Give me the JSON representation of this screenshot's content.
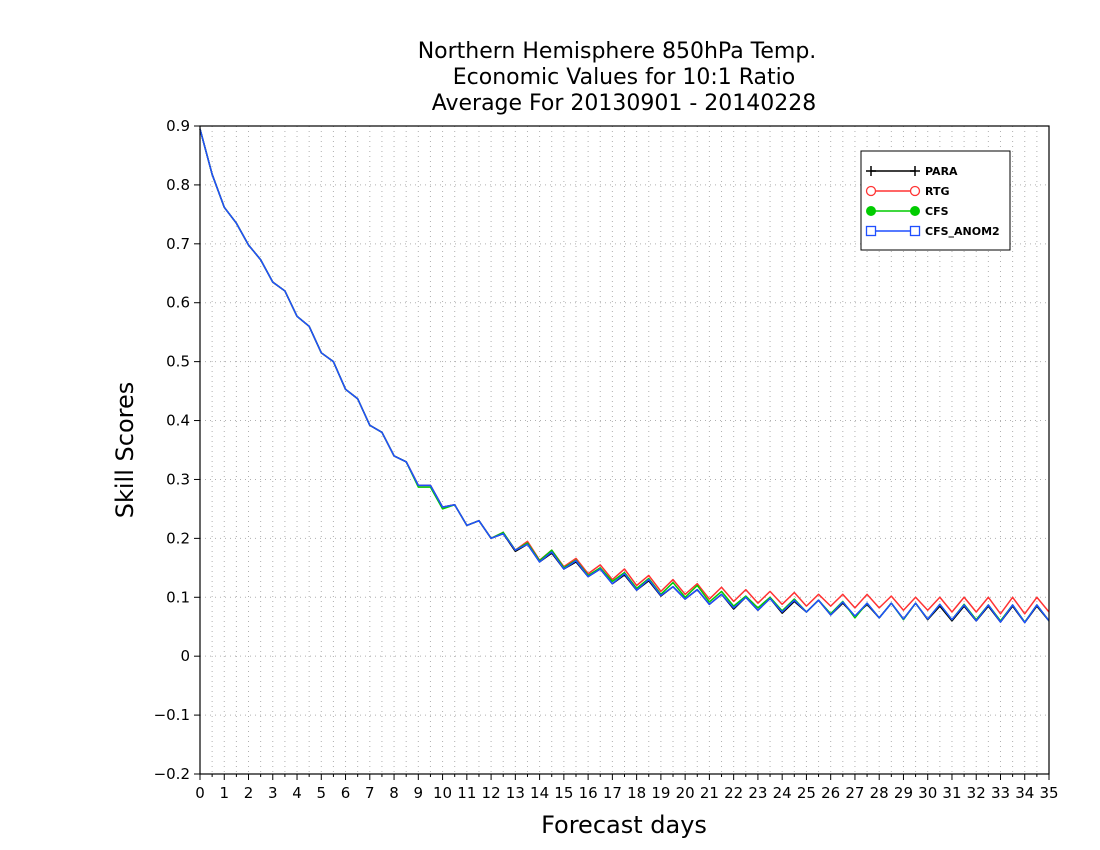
{
  "chart_data": {
    "type": "line",
    "title": [
      "Northern Hemisphere 850hPa Temp.",
      "Economic Values for 10:1 Ratio",
      "Average For 20130901 - 20140228"
    ],
    "xlabel": "Forecast days",
    "ylabel": "Skill Scores",
    "xlim": [
      0,
      35
    ],
    "ylim": [
      -0.2,
      0.9
    ],
    "xticks": [
      0,
      1,
      2,
      3,
      4,
      5,
      6,
      7,
      8,
      9,
      10,
      11,
      12,
      13,
      14,
      15,
      16,
      17,
      18,
      19,
      20,
      21,
      22,
      23,
      24,
      25,
      26,
      27,
      28,
      29,
      30,
      31,
      32,
      33,
      34,
      35
    ],
    "yticks": [
      -0.2,
      -0.1,
      0,
      0.1,
      0.2,
      0.3,
      0.4,
      0.5,
      0.6,
      0.7,
      0.8,
      0.9
    ],
    "grid": true,
    "legend_position": "top-right",
    "x": [
      0,
      0.5,
      1,
      1.5,
      2,
      2.5,
      3,
      3.5,
      4,
      4.5,
      5,
      5.5,
      6,
      6.5,
      7,
      7.5,
      8,
      8.5,
      9,
      9.5,
      10,
      10.5,
      11,
      11.5,
      12,
      12.5,
      13,
      13.5,
      14,
      14.5,
      15,
      15.5,
      16,
      16.5,
      17,
      17.5,
      18,
      18.5,
      19,
      19.5,
      20,
      20.5,
      21,
      21.5,
      22,
      22.5,
      23,
      23.5,
      24,
      24.5,
      25,
      25.5,
      26,
      26.5,
      27,
      27.5,
      28,
      28.5,
      29,
      29.5,
      30,
      30.5,
      31,
      31.5,
      32,
      32.5,
      33,
      33.5,
      34,
      34.5,
      35
    ],
    "series": [
      {
        "name": "PARA",
        "color": "#000000",
        "marker": "plus",
        "values": [
          0.895,
          0.818,
          0.762,
          0.735,
          0.698,
          0.673,
          0.635,
          0.62,
          0.577,
          0.56,
          0.515,
          0.5,
          0.453,
          0.437,
          0.392,
          0.38,
          0.34,
          0.33,
          0.29,
          0.29,
          0.253,
          0.257,
          0.222,
          0.23,
          0.2,
          0.208,
          0.178,
          0.19,
          0.16,
          0.175,
          0.148,
          0.16,
          0.135,
          0.148,
          0.123,
          0.138,
          0.112,
          0.128,
          0.102,
          0.118,
          0.097,
          0.113,
          0.088,
          0.105,
          0.08,
          0.1,
          0.078,
          0.098,
          0.073,
          0.093,
          0.075,
          0.095,
          0.07,
          0.09,
          0.068,
          0.088,
          0.065,
          0.09,
          0.063,
          0.09,
          0.062,
          0.085,
          0.06,
          0.085,
          0.06,
          0.085,
          0.058,
          0.085,
          0.057,
          0.085,
          0.06
        ]
      },
      {
        "name": "RTG",
        "color": "#ff3333",
        "marker": "circle",
        "values": [
          0.895,
          0.818,
          0.762,
          0.735,
          0.698,
          0.673,
          0.635,
          0.62,
          0.577,
          0.56,
          0.515,
          0.5,
          0.453,
          0.437,
          0.392,
          0.38,
          0.34,
          0.33,
          0.29,
          0.29,
          0.253,
          0.257,
          0.222,
          0.23,
          0.2,
          0.21,
          0.18,
          0.195,
          0.163,
          0.18,
          0.152,
          0.166,
          0.14,
          0.155,
          0.13,
          0.148,
          0.12,
          0.137,
          0.11,
          0.13,
          0.105,
          0.123,
          0.097,
          0.117,
          0.093,
          0.113,
          0.09,
          0.11,
          0.088,
          0.108,
          0.085,
          0.105,
          0.085,
          0.105,
          0.082,
          0.105,
          0.082,
          0.102,
          0.078,
          0.1,
          0.078,
          0.1,
          0.075,
          0.1,
          0.075,
          0.1,
          0.072,
          0.1,
          0.072,
          0.1,
          0.075
        ]
      },
      {
        "name": "CFS",
        "color": "#00cc00",
        "marker": "dot",
        "values": [
          0.895,
          0.818,
          0.762,
          0.735,
          0.698,
          0.673,
          0.635,
          0.62,
          0.577,
          0.56,
          0.515,
          0.5,
          0.453,
          0.437,
          0.392,
          0.38,
          0.34,
          0.33,
          0.287,
          0.287,
          0.25,
          0.257,
          0.222,
          0.23,
          0.2,
          0.21,
          0.18,
          0.192,
          0.162,
          0.18,
          0.15,
          0.163,
          0.137,
          0.15,
          0.127,
          0.142,
          0.115,
          0.132,
          0.105,
          0.125,
          0.1,
          0.12,
          0.092,
          0.11,
          0.085,
          0.102,
          0.082,
          0.1,
          0.077,
          0.097,
          0.075,
          0.095,
          0.072,
          0.093,
          0.065,
          0.09,
          0.065,
          0.09,
          0.062,
          0.09,
          0.063,
          0.088,
          0.062,
          0.088,
          0.062,
          0.087,
          0.06,
          0.087,
          0.058,
          0.087,
          0.06
        ]
      },
      {
        "name": "CFS_ANOM2",
        "color": "#1f4fff",
        "marker": "square",
        "values": [
          0.895,
          0.818,
          0.762,
          0.735,
          0.698,
          0.673,
          0.635,
          0.62,
          0.577,
          0.56,
          0.515,
          0.5,
          0.453,
          0.437,
          0.392,
          0.38,
          0.34,
          0.33,
          0.29,
          0.29,
          0.253,
          0.257,
          0.222,
          0.23,
          0.2,
          0.208,
          0.18,
          0.19,
          0.16,
          0.177,
          0.148,
          0.162,
          0.135,
          0.148,
          0.123,
          0.14,
          0.112,
          0.13,
          0.103,
          0.118,
          0.097,
          0.113,
          0.088,
          0.105,
          0.082,
          0.1,
          0.078,
          0.098,
          0.075,
          0.095,
          0.075,
          0.095,
          0.07,
          0.092,
          0.068,
          0.09,
          0.065,
          0.09,
          0.063,
          0.09,
          0.063,
          0.088,
          0.062,
          0.087,
          0.06,
          0.087,
          0.058,
          0.087,
          0.057,
          0.087,
          0.06
        ]
      }
    ]
  }
}
